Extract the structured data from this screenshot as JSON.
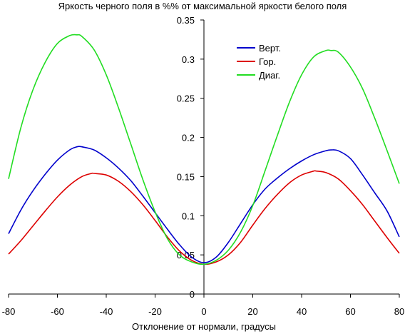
{
  "chart_data": {
    "type": "line",
    "title": "Яркость черного поля в %% от максимальной яркости белого поля",
    "xlabel": "Отклонение от нормали, градусы",
    "ylabel": "",
    "xlim": [
      -80,
      80
    ],
    "ylim": [
      0,
      0.35
    ],
    "x_ticks": [
      -80,
      -60,
      -40,
      -20,
      0,
      20,
      40,
      60,
      80
    ],
    "y_ticks": [
      0,
      0.05,
      0.1,
      0.15,
      0.2,
      0.25,
      0.3,
      0.35
    ],
    "x_tick_labels": [
      "-80",
      "-60",
      "-40",
      "-20",
      "0",
      "20",
      "40",
      "60",
      "80"
    ],
    "y_tick_labels": [
      "0",
      "0.05",
      "0.1",
      "0.15",
      "0.2",
      "0.25",
      "0.3",
      "0.35"
    ],
    "legend": {
      "placement": "top-right"
    },
    "grid": false,
    "series": [
      {
        "name": "Верт.",
        "color": "#0000cc",
        "x": [
          -80,
          -75,
          -70,
          -65,
          -60,
          -55,
          -52,
          -50,
          -45,
          -40,
          -35,
          -30,
          -25,
          -20,
          -15,
          -10,
          -5,
          0,
          5,
          10,
          15,
          20,
          25,
          30,
          35,
          40,
          45,
          50,
          52,
          55,
          60,
          65,
          70,
          75,
          80
        ],
        "y": [
          0.077,
          0.107,
          0.132,
          0.153,
          0.171,
          0.184,
          0.188,
          0.188,
          0.184,
          0.174,
          0.161,
          0.145,
          0.125,
          0.104,
          0.083,
          0.063,
          0.047,
          0.04,
          0.047,
          0.066,
          0.09,
          0.114,
          0.134,
          0.148,
          0.16,
          0.17,
          0.178,
          0.183,
          0.184,
          0.183,
          0.173,
          0.152,
          0.129,
          0.106,
          0.073
        ]
      },
      {
        "name": "Гор.",
        "color": "#dd0000",
        "x": [
          -80,
          -75,
          -70,
          -65,
          -60,
          -55,
          -50,
          -46,
          -45,
          -40,
          -35,
          -30,
          -25,
          -20,
          -15,
          -10,
          -5,
          0,
          5,
          10,
          15,
          20,
          25,
          30,
          35,
          40,
          45,
          46,
          50,
          55,
          60,
          65,
          70,
          75,
          80
        ],
        "y": [
          0.051,
          0.068,
          0.087,
          0.106,
          0.124,
          0.139,
          0.15,
          0.154,
          0.154,
          0.152,
          0.144,
          0.131,
          0.114,
          0.094,
          0.073,
          0.055,
          0.043,
          0.038,
          0.041,
          0.05,
          0.066,
          0.088,
          0.109,
          0.127,
          0.142,
          0.152,
          0.157,
          0.157,
          0.155,
          0.147,
          0.132,
          0.114,
          0.093,
          0.072,
          0.052
        ]
      },
      {
        "name": "Диаг.",
        "color": "#22dd22",
        "x": [
          -80,
          -75,
          -70,
          -65,
          -60,
          -55,
          -52,
          -50,
          -45,
          -40,
          -35,
          -30,
          -25,
          -20,
          -15,
          -10,
          -5,
          0,
          5,
          10,
          15,
          20,
          25,
          30,
          35,
          40,
          45,
          50,
          52,
          55,
          60,
          65,
          70,
          75,
          80
        ],
        "y": [
          0.147,
          0.212,
          0.261,
          0.296,
          0.32,
          0.33,
          0.331,
          0.329,
          0.312,
          0.28,
          0.238,
          0.192,
          0.146,
          0.105,
          0.071,
          0.05,
          0.041,
          0.038,
          0.043,
          0.056,
          0.079,
          0.113,
          0.157,
          0.202,
          0.245,
          0.28,
          0.303,
          0.311,
          0.311,
          0.309,
          0.29,
          0.262,
          0.224,
          0.183,
          0.141
        ]
      }
    ]
  }
}
